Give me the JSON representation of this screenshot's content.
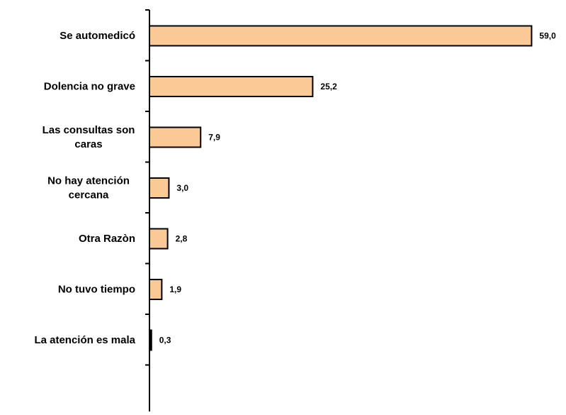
{
  "chart_data": {
    "type": "bar",
    "orientation": "horizontal",
    "categories": [
      "Se automedicó",
      "Dolencia no grave",
      "Las consultas son caras",
      "No hay atención cercana",
      "Otra Razòn",
      "No tuvo tiempo",
      "La atención es mala"
    ],
    "category_lines": [
      [
        "Se automedicó"
      ],
      [
        "Dolencia no grave"
      ],
      [
        "Las consultas son",
        "caras"
      ],
      [
        "No hay atención",
        "cercana"
      ],
      [
        "Otra Razòn"
      ],
      [
        "No tuvo tiempo"
      ],
      [
        "La atención es mala"
      ]
    ],
    "values": [
      59.0,
      25.2,
      7.9,
      3.0,
      2.8,
      1.9,
      0.3
    ],
    "value_labels": [
      "59,0",
      "25,2",
      "7,9",
      "3,0",
      "2,8",
      "1,9",
      "0,3"
    ],
    "xlim": [
      0,
      59.5
    ],
    "bar_color": "#fbc995",
    "bar_stroke": "#000000",
    "title": "",
    "xlabel": "",
    "ylabel": "",
    "grid": false,
    "legend": "none"
  }
}
